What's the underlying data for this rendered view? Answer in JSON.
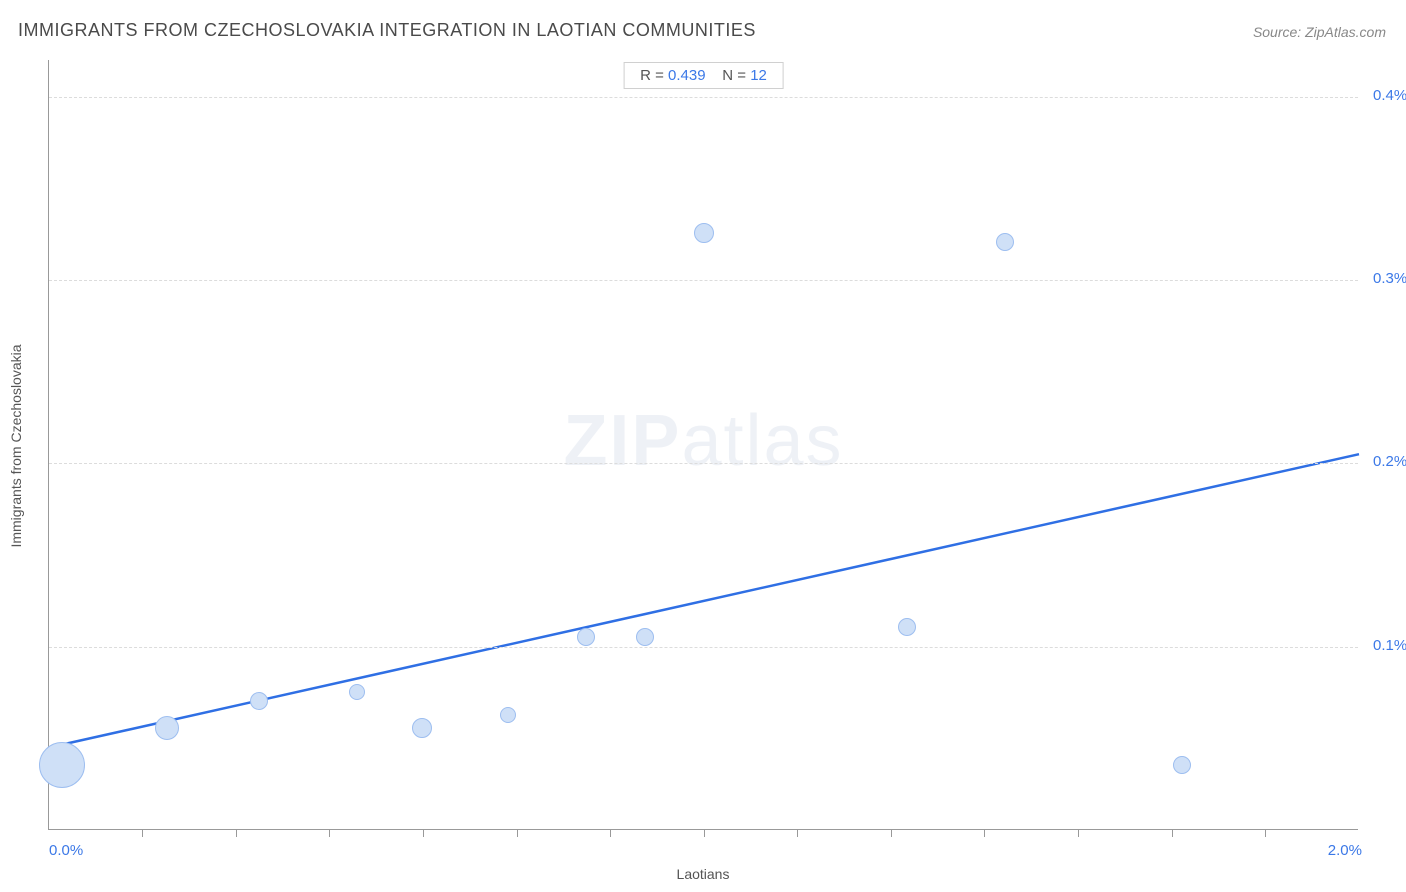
{
  "title": "IMMIGRANTS FROM CZECHOSLOVAKIA INTEGRATION IN LAOTIAN COMMUNITIES",
  "source_prefix": "Source: ",
  "source_name": "ZipAtlas.com",
  "stats": {
    "r_label": "R = ",
    "r_value": "0.439",
    "n_label": "N = ",
    "n_value": "12"
  },
  "watermark_bold": "ZIP",
  "watermark_light": "atlas",
  "x_axis": {
    "label": "Laotians",
    "min": 0.0,
    "max": 2.0,
    "min_label": "0.0%",
    "max_label": "2.0%",
    "tick_positions": [
      0.142,
      0.285,
      0.428,
      0.571,
      0.714,
      0.857,
      1.0,
      1.142,
      1.285,
      1.428,
      1.571,
      1.714,
      1.857
    ]
  },
  "y_axis": {
    "label": "Immigrants from Czechoslovakia",
    "min": 0.0,
    "max": 0.42,
    "grid_values": [
      0.1,
      0.2,
      0.3,
      0.4
    ],
    "grid_labels": [
      "0.1%",
      "0.2%",
      "0.3%",
      "0.4%"
    ]
  },
  "trend_line": {
    "x1_val": 0.0,
    "y1_val": 0.045,
    "x2_val": 2.0,
    "y2_val": 0.205,
    "color": "#2f6fe4",
    "width": 2.5
  },
  "bubbles": [
    {
      "x": 0.02,
      "y": 0.035,
      "r": 23
    },
    {
      "x": 0.18,
      "y": 0.055,
      "r": 12
    },
    {
      "x": 0.32,
      "y": 0.07,
      "r": 9
    },
    {
      "x": 0.47,
      "y": 0.075,
      "r": 8
    },
    {
      "x": 0.57,
      "y": 0.055,
      "r": 10
    },
    {
      "x": 0.7,
      "y": 0.062,
      "r": 8
    },
    {
      "x": 0.82,
      "y": 0.105,
      "r": 9
    },
    {
      "x": 0.91,
      "y": 0.105,
      "r": 9
    },
    {
      "x": 1.0,
      "y": 0.325,
      "r": 10
    },
    {
      "x": 1.31,
      "y": 0.11,
      "r": 9
    },
    {
      "x": 1.46,
      "y": 0.32,
      "r": 9
    },
    {
      "x": 1.73,
      "y": 0.035,
      "r": 9
    }
  ],
  "colors": {
    "bubble_fill": "#cfe0f7",
    "bubble_stroke": "#9dbef0",
    "axis_tick": "#999999",
    "grid": "#dcdcdc",
    "text": "#555555",
    "value_text": "#3b78e7"
  }
}
